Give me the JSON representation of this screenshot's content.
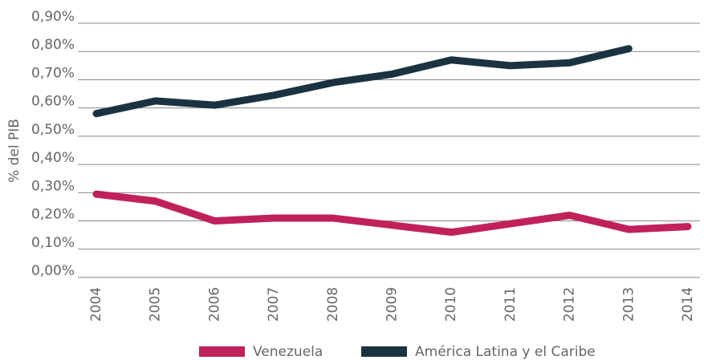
{
  "chart_data": {
    "type": "line",
    "y_axis_label": "% del PIB",
    "categories": [
      "2004",
      "2005",
      "2006",
      "2007",
      "2008",
      "2009",
      "2010",
      "2011",
      "2012",
      "2013",
      "2014"
    ],
    "series": [
      {
        "name": "Venezuela",
        "color": "#c0215a",
        "values": [
          0.295,
          0.27,
          0.2,
          0.21,
          0.21,
          0.185,
          0.16,
          0.19,
          0.22,
          0.17,
          0.18
        ]
      },
      {
        "name": "América Latina y el Caribe",
        "color": "#1b3341",
        "values": [
          0.58,
          0.625,
          0.61,
          0.645,
          0.69,
          0.72,
          0.77,
          0.75,
          0.76,
          0.81,
          null
        ]
      }
    ],
    "ylim": [
      0,
      0.9
    ],
    "yticks": [
      {
        "value": 0,
        "label": "0,00%"
      },
      {
        "value": 0.1,
        "label": "0,10%"
      },
      {
        "value": 0.2,
        "label": "0,20%"
      },
      {
        "value": 0.3,
        "label": "0,30%"
      },
      {
        "value": 0.4,
        "label": "0,40%"
      },
      {
        "value": 0.5,
        "label": "0,50%"
      },
      {
        "value": 0.6,
        "label": "0,60%"
      },
      {
        "value": 0.7,
        "label": "0,70%"
      },
      {
        "value": 0.8,
        "label": "0,80%"
      },
      {
        "value": 0.9,
        "label": "0,90%"
      }
    ],
    "grid": true,
    "legend": "bottom"
  }
}
